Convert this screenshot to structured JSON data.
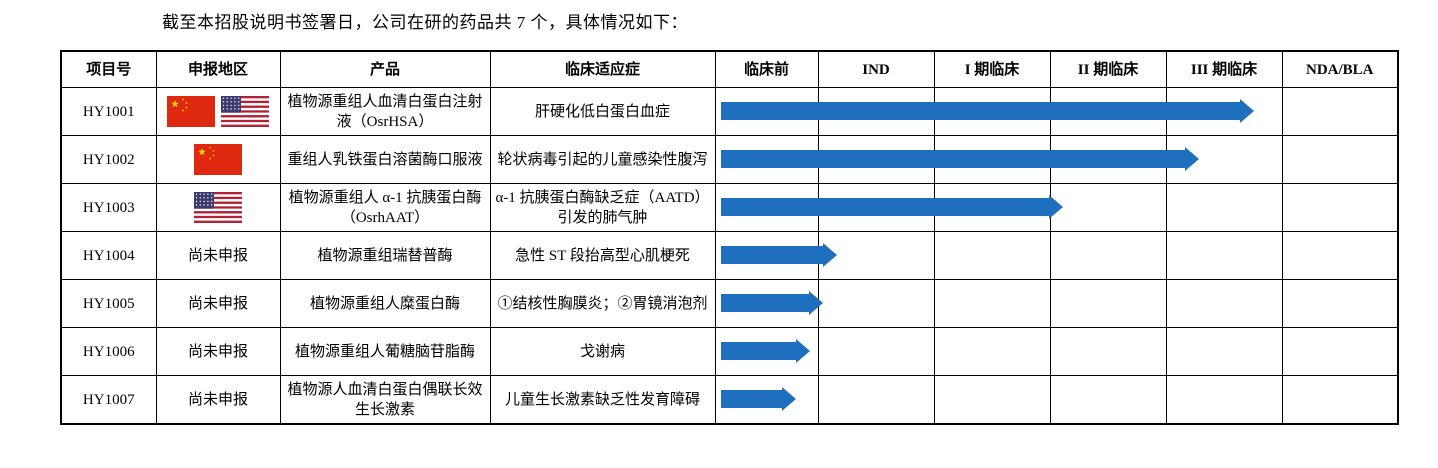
{
  "intro": "截至本招股说明书签署日，公司在研的药品共 7 个，具体情况如下：",
  "headers": [
    "项目号",
    "申报地区",
    "产品",
    "临床适应症",
    "临床前",
    "IND",
    "I 期临床",
    "II 期临床",
    "III 期临床",
    "NDA/BLA"
  ],
  "rows": [
    {
      "id": "HY1001",
      "region": "",
      "flags": [
        "china-flag-icon",
        "usa-flag-icon"
      ],
      "product": "植物源重组人血清白蛋白注射液（OsrHSA）",
      "indication": "肝硬化低白蛋白血症",
      "stage_progress": 0.78
    },
    {
      "id": "HY1002",
      "region": "",
      "flags": [
        "china-flag-icon"
      ],
      "product": "重组人乳铁蛋白溶菌酶口服液",
      "indication": "轮状病毒引起的儿童感染性腹泻",
      "stage_progress": 0.7
    },
    {
      "id": "HY1003",
      "region": "",
      "flags": [
        "usa-flag-icon"
      ],
      "product": "植物源重组人 α-1 抗胰蛋白酶（OsrhAAT）",
      "indication": "α-1 抗胰蛋白酶缺乏症（AATD）引发的肺气肿",
      "stage_progress": 0.5
    },
    {
      "id": "HY1004",
      "region": "尚未申报",
      "flags": [],
      "product": "植物源重组瑞替普酶",
      "indication": "急性 ST 段抬高型心肌梗死",
      "stage_progress": 0.17
    },
    {
      "id": "HY1005",
      "region": "尚未申报",
      "flags": [],
      "product": "植物源重组人糜蛋白酶",
      "indication": "①结核性胸膜炎；②胃镜消泡剂",
      "stage_progress": 0.15
    },
    {
      "id": "HY1006",
      "region": "尚未申报",
      "flags": [],
      "product": "植物源重组人葡糖脑苷脂酶",
      "indication": "戈谢病",
      "stage_progress": 0.13
    },
    {
      "id": "HY1007",
      "region": "尚未申报",
      "flags": [],
      "product": "植物源人血清白蛋白偶联长效生长激素",
      "indication": "儿童生长激素缺乏性发育障碍",
      "stage_progress": 0.11
    }
  ],
  "colors": {
    "bar": "#1f6fbf",
    "china_flag": "#de2910",
    "china_star": "#ffde00",
    "usa_red": "#b22234",
    "usa_blue": "#3c3b6e"
  }
}
